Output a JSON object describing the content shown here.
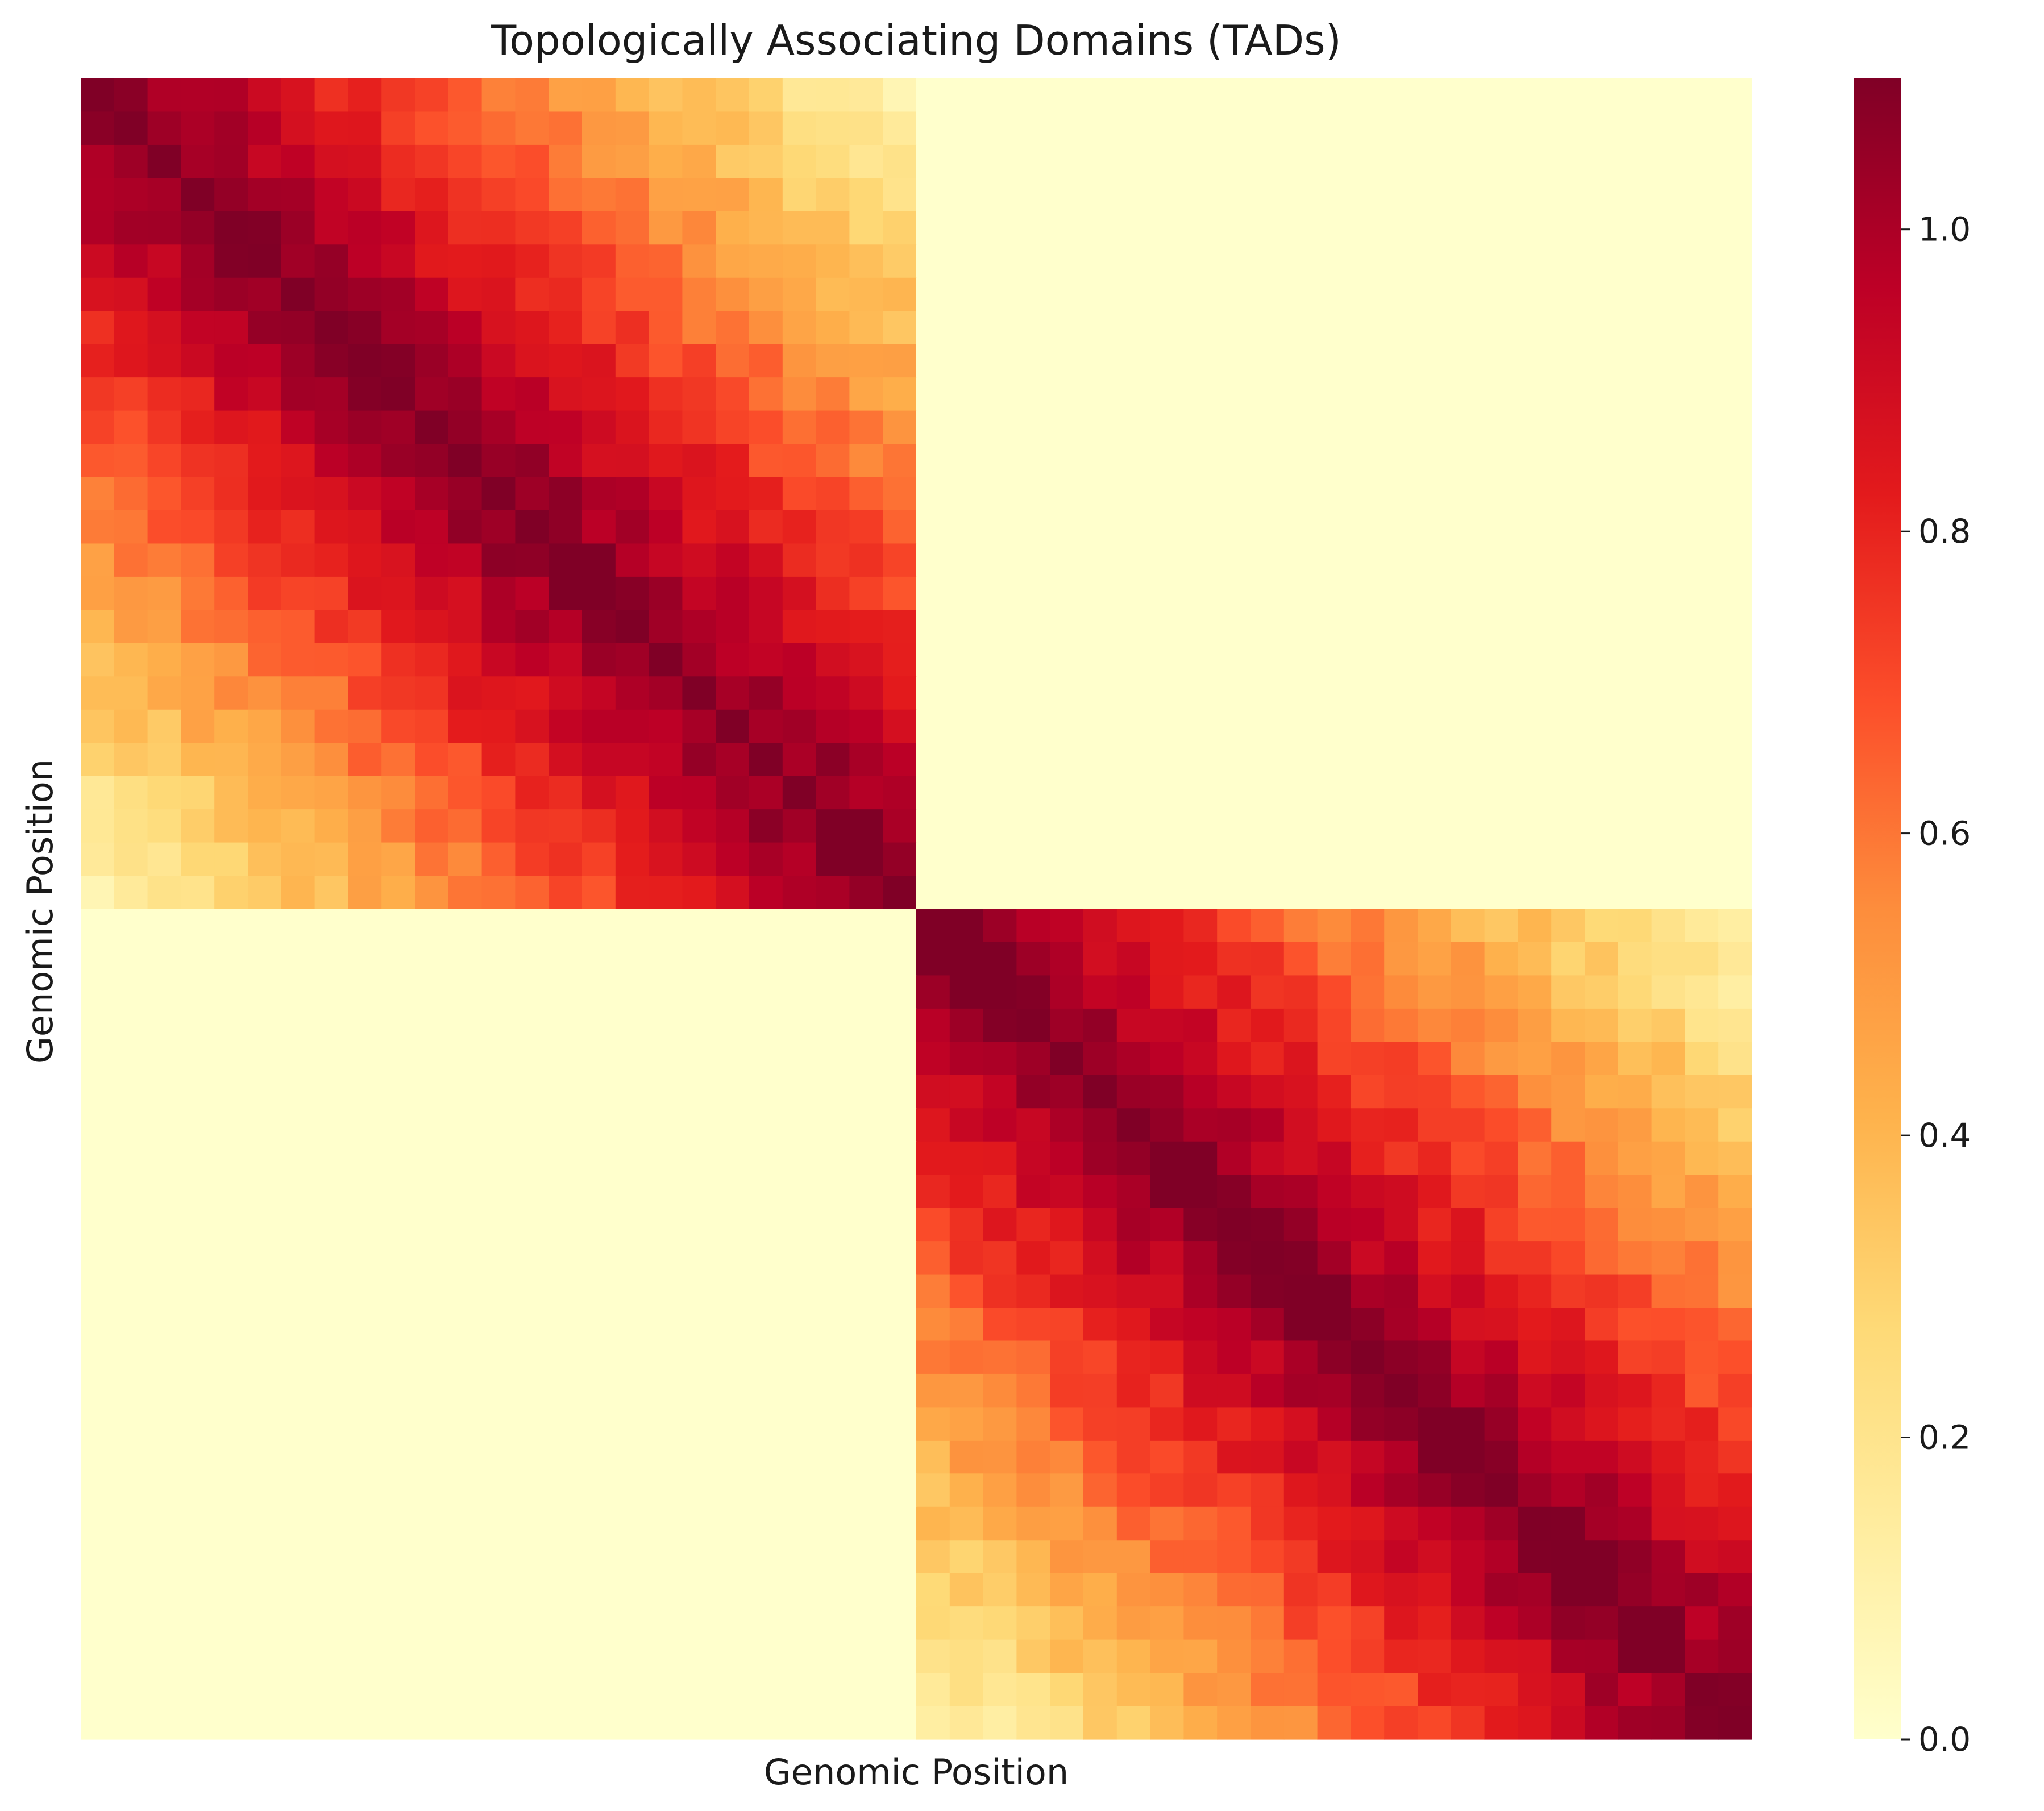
{
  "chart_data": {
    "type": "heatmap",
    "title": "Topologically Associating Domains (TADs)",
    "xlabel": "Genomic Position",
    "ylabel": "Genomic Position",
    "matrix_size": 50,
    "domains": [
      {
        "start": 0,
        "end": 25
      },
      {
        "start": 25,
        "end": 50
      }
    ],
    "diagonal_value": 1.1,
    "decay_per_bin": 0.04,
    "off_domain_value": 0.0,
    "colorbar": {
      "min": 0.0,
      "max": 1.1,
      "ticks": [
        "0.0",
        "0.2",
        "0.4",
        "0.6",
        "0.8",
        "1.0"
      ],
      "tick_values": [
        0.0,
        0.2,
        0.4,
        0.6,
        0.8,
        1.0
      ]
    },
    "colormap": "YlOrRd",
    "colormap_stops": [
      "#ffffcc",
      "#ffeda0",
      "#fed976",
      "#feb24c",
      "#fd8d3c",
      "#fc4e2a",
      "#e31a1c",
      "#bd0026",
      "#800026"
    ],
    "grid": false,
    "legend": "none"
  }
}
